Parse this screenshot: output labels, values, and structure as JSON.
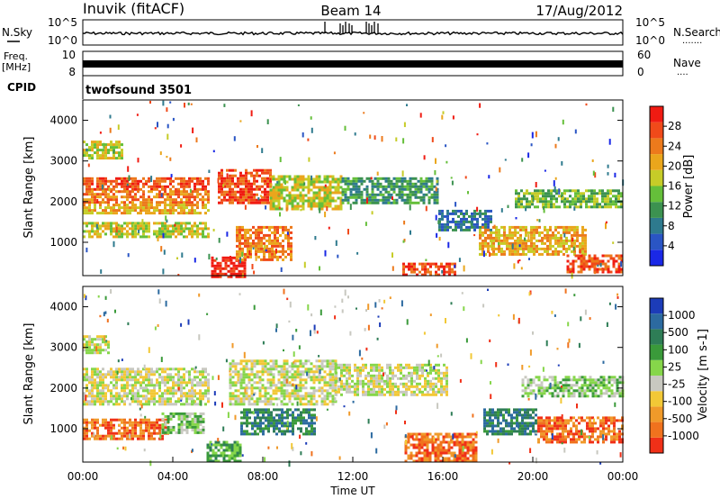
{
  "header": {
    "station": "Inuvik (fitACF)",
    "beam": "Beam 14",
    "date": "17/Aug/2012"
  },
  "left_labels": {
    "nsky": "N.Sky",
    "freq": "Freq.",
    "mhz": "[MHz]",
    "cpid": "CPID"
  },
  "right_labels": {
    "nsearch": "N.Search",
    "nave": "Nave",
    "nsearch_dots": "·······",
    "nave_dots": "····"
  },
  "cpid_text": "twofsound 3501",
  "chart_data": [
    {
      "type": "line",
      "name": "noise-panel",
      "left_axis": {
        "ticks": [
          "10^5",
          "10^0"
        ]
      },
      "right_axis": {
        "ticks": [
          "10^5",
          "10^0"
        ]
      },
      "series": [
        {
          "name": "N.Sky",
          "style": "solid"
        },
        {
          "name": "N.Search",
          "style": "dotted"
        }
      ]
    },
    {
      "type": "line",
      "name": "freq-panel",
      "left_axis": {
        "ticks": [
          "10",
          "8"
        ],
        "range": [
          8,
          10
        ]
      },
      "right_axis": {
        "ticks": [
          "60",
          "0"
        ],
        "range": [
          0,
          60
        ]
      },
      "series": [
        {
          "name": "Freq.",
          "style": "solid"
        },
        {
          "name": "Nave",
          "style": "dotted"
        }
      ]
    },
    {
      "type": "heatmap",
      "name": "power-panel",
      "ylabel": "Slant Range [km]",
      "yticks": [
        1000,
        2000,
        3000,
        4000
      ],
      "ylim": [
        180,
        4500
      ],
      "colorbar": {
        "label": "Power [dB]",
        "ticks": [
          "4",
          "8",
          "12",
          "16",
          "20",
          "24",
          "28"
        ],
        "colors": [
          "#1a28e6",
          "#2a55c4",
          "#2e7a8e",
          "#3c9250",
          "#65bf3a",
          "#c6cc28",
          "#eaa61c",
          "#ec7a1c",
          "#f04a1a",
          "#f01b12"
        ]
      },
      "bands": [
        {
          "t0": 0.0,
          "t1": 5.6,
          "r0": 2280,
          "r1": 2600,
          "color_index": 8
        },
        {
          "t0": 0.0,
          "t1": 5.6,
          "r0": 1950,
          "r1": 2280,
          "color_index": 7
        },
        {
          "t0": 0.0,
          "t1": 5.6,
          "r0": 1700,
          "r1": 1950,
          "color_index": 6
        },
        {
          "t0": 0.0,
          "t1": 5.6,
          "r0": 1150,
          "r1": 1500,
          "color_index": 5
        },
        {
          "t0": 0.0,
          "t1": 1.8,
          "r0": 3100,
          "r1": 3500,
          "color_index": 5
        },
        {
          "t0": 5.7,
          "t1": 7.2,
          "r0": 180,
          "r1": 650,
          "color_index": 9
        },
        {
          "t0": 6.0,
          "t1": 8.3,
          "r0": 2000,
          "r1": 2800,
          "color_index": 8
        },
        {
          "t0": 6.8,
          "t1": 9.3,
          "r0": 600,
          "r1": 1400,
          "color_index": 7
        },
        {
          "t0": 8.3,
          "t1": 11.5,
          "r0": 1850,
          "r1": 2650,
          "color_index": 5
        },
        {
          "t0": 11.5,
          "t1": 15.8,
          "r0": 2000,
          "r1": 2600,
          "color_index": 3
        },
        {
          "t0": 14.2,
          "t1": 16.5,
          "r0": 180,
          "r1": 500,
          "color_index": 8
        },
        {
          "t0": 15.8,
          "t1": 18.2,
          "r0": 1300,
          "r1": 1800,
          "color_index": 2
        },
        {
          "t0": 17.6,
          "t1": 22.3,
          "r0": 700,
          "r1": 1400,
          "color_index": 6
        },
        {
          "t0": 19.2,
          "t1": 24.0,
          "r0": 1900,
          "r1": 2300,
          "color_index": 4
        },
        {
          "t0": 21.5,
          "t1": 24.0,
          "r0": 300,
          "r1": 700,
          "color_index": 8
        }
      ]
    },
    {
      "type": "heatmap",
      "name": "velocity-panel",
      "ylabel": "Slant Range [km]",
      "xlabel": "Time UT",
      "yticks": [
        1000,
        2000,
        3000,
        4000
      ],
      "ylim": [
        180,
        4500
      ],
      "xticks": [
        "00:00",
        "04:00",
        "08:00",
        "12:00",
        "16:00",
        "20:00",
        "00:00"
      ],
      "xlim": [
        0,
        24
      ],
      "colorbar": {
        "label": "Velocity [m s-1]",
        "ticks": [
          "1000",
          "500",
          "100",
          "25",
          "-25",
          "-100",
          "-500",
          "-1000"
        ],
        "colors": [
          "#1c3cb8",
          "#2c6aa0",
          "#2e7d56",
          "#3a9a3a",
          "#86d64a",
          "#c8c8c0",
          "#f2c836",
          "#f09a2a",
          "#f0721e",
          "#f03018"
        ]
      },
      "bands": [
        {
          "t0": 0.0,
          "t1": 5.6,
          "r0": 1600,
          "r1": 2500,
          "color_index": 5
        },
        {
          "t0": 0.0,
          "t1": 1.2,
          "r0": 2900,
          "r1": 3300,
          "color_index": 5
        },
        {
          "t0": 0.0,
          "t1": 3.8,
          "r0": 750,
          "r1": 1250,
          "color_index": 8
        },
        {
          "t0": 3.5,
          "t1": 5.4,
          "r0": 900,
          "r1": 1400,
          "color_index": 4
        },
        {
          "t0": 5.5,
          "t1": 7.0,
          "r0": 180,
          "r1": 700,
          "color_index": 3
        },
        {
          "t0": 6.5,
          "t1": 11.2,
          "r0": 1600,
          "r1": 2700,
          "color_index": 5
        },
        {
          "t0": 7.0,
          "t1": 10.3,
          "r0": 900,
          "r1": 1500,
          "color_index": 2
        },
        {
          "t0": 11.2,
          "t1": 16.2,
          "r0": 1850,
          "r1": 2600,
          "color_index": 5
        },
        {
          "t0": 14.3,
          "t1": 17.5,
          "r0": 180,
          "r1": 900,
          "color_index": 8
        },
        {
          "t0": 17.8,
          "t1": 20.2,
          "r0": 900,
          "r1": 1500,
          "color_index": 2
        },
        {
          "t0": 19.5,
          "t1": 24.0,
          "r0": 1800,
          "r1": 2300,
          "color_index": 4
        },
        {
          "t0": 20.2,
          "t1": 24.0,
          "r0": 700,
          "r1": 1300,
          "color_index": 8
        }
      ]
    }
  ]
}
